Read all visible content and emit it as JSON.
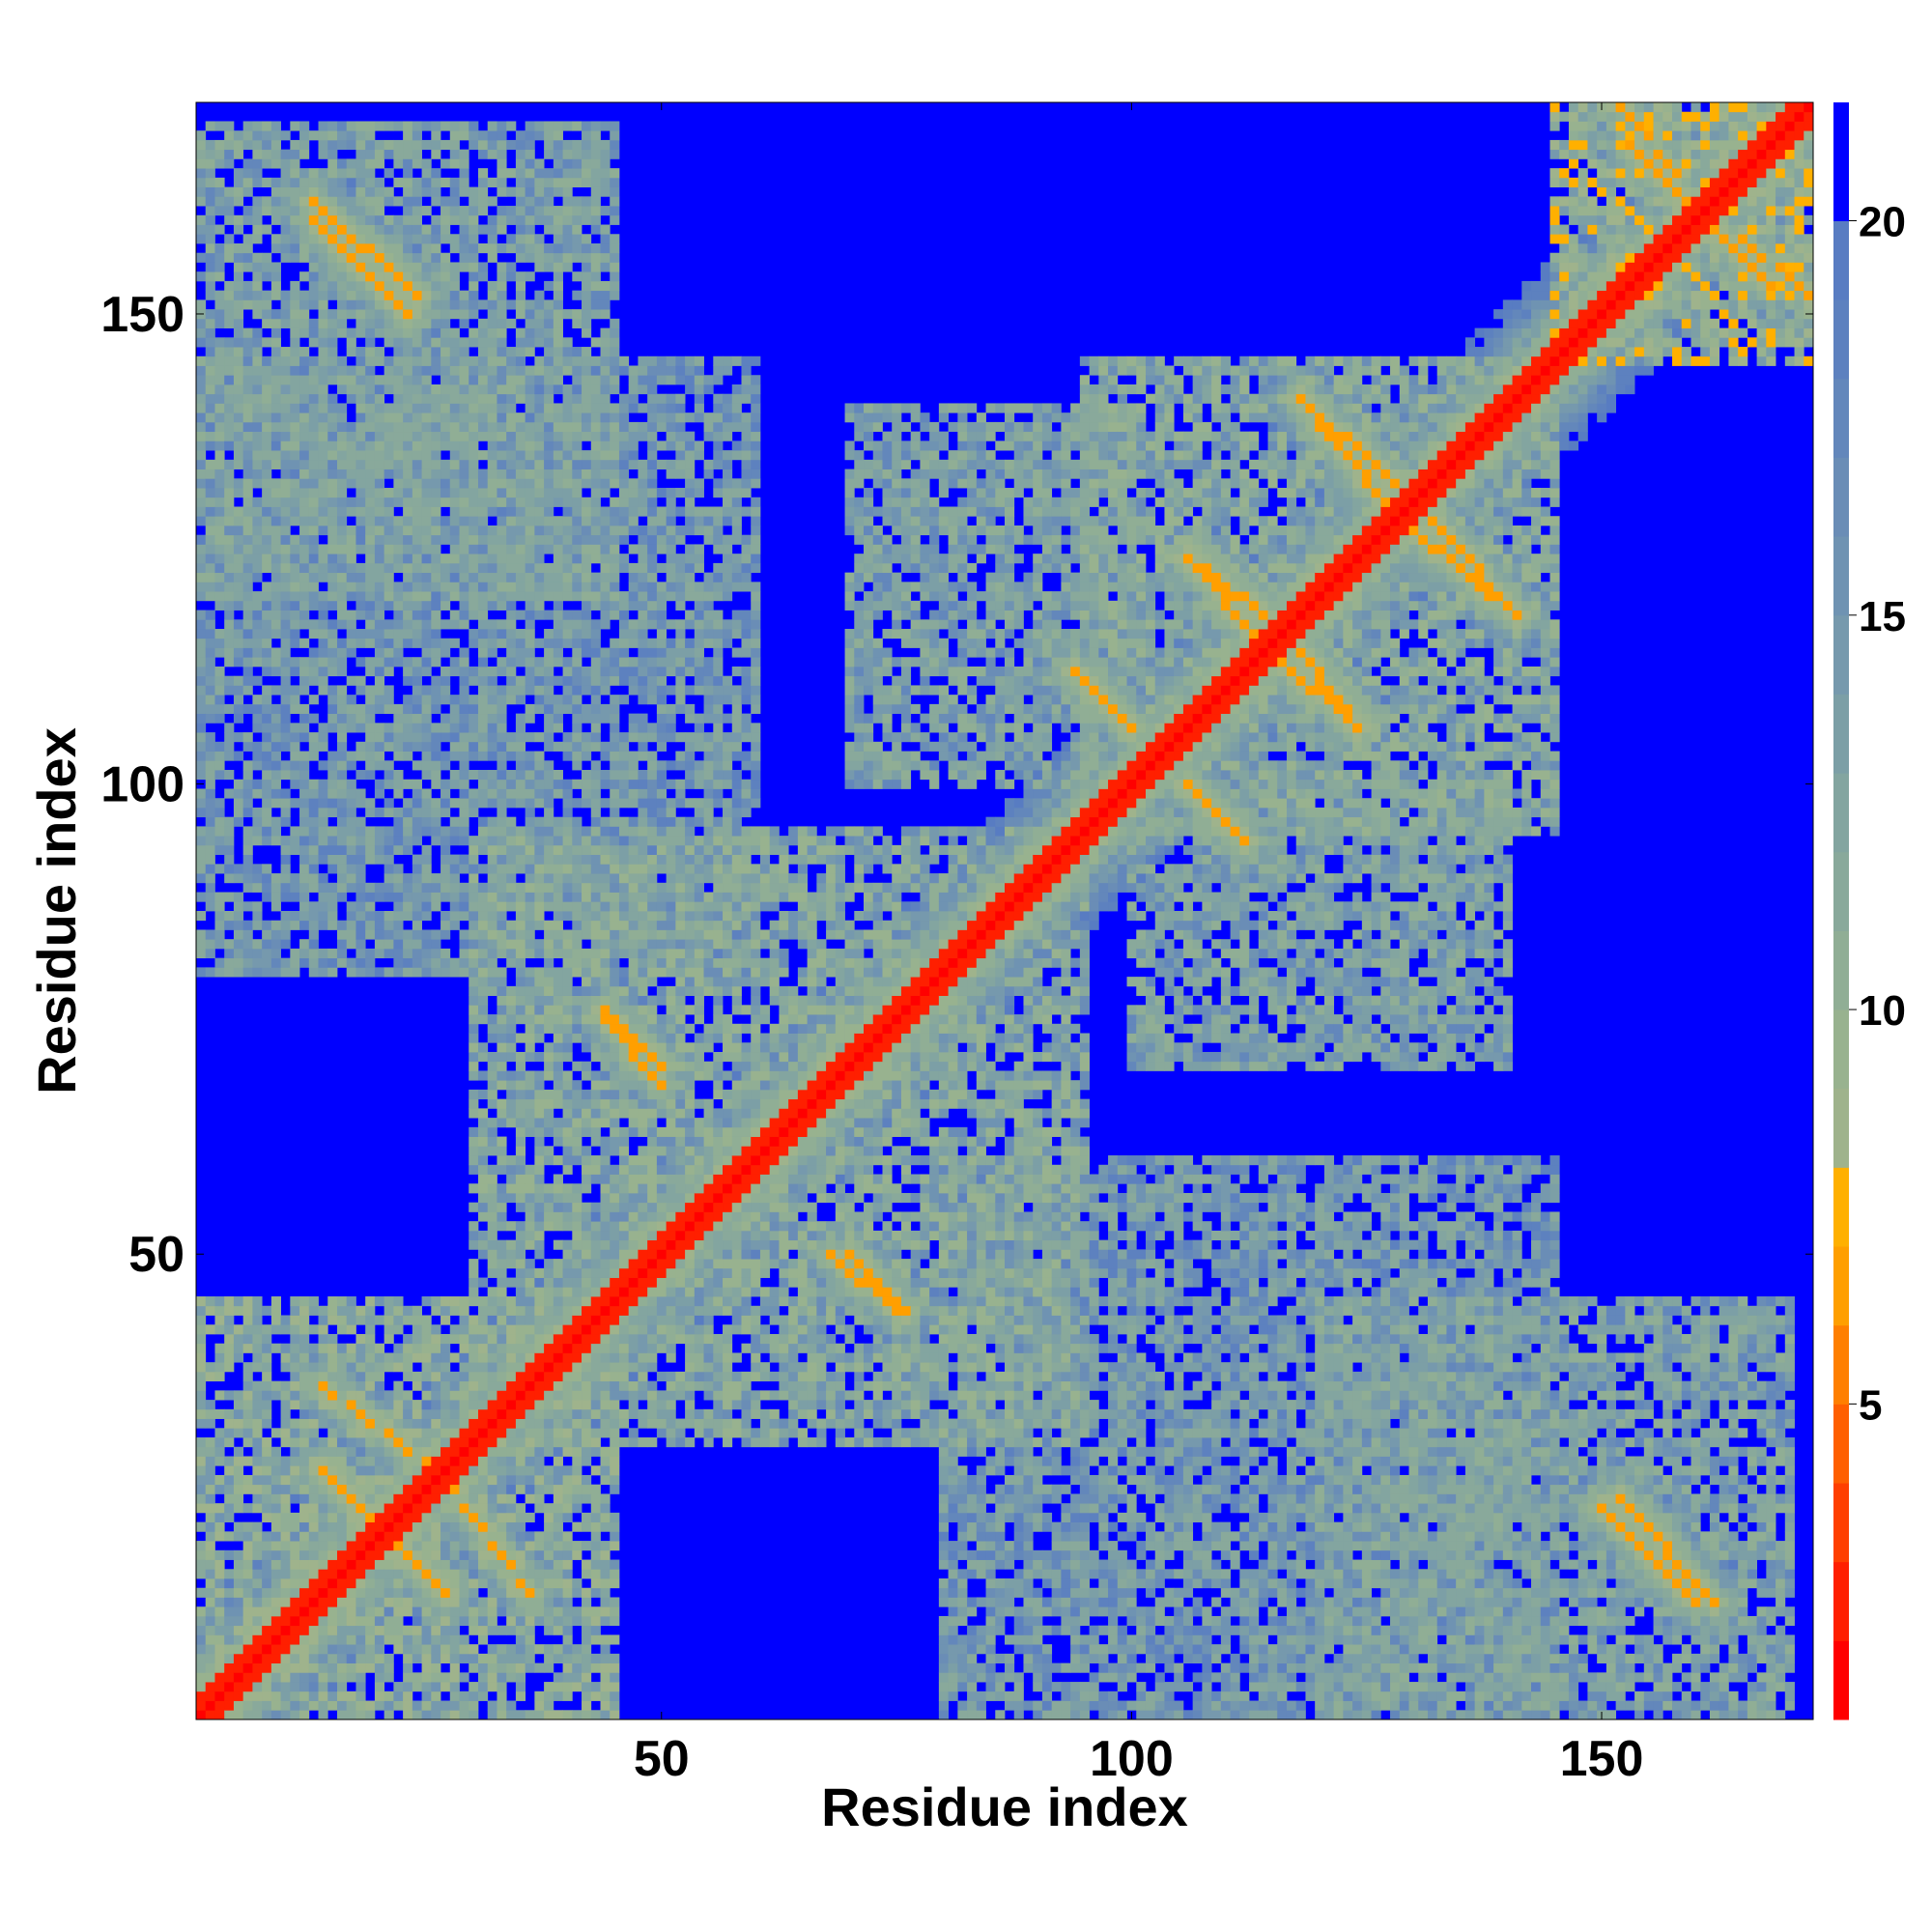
{
  "chart_data": {
    "type": "heatmap",
    "title": "",
    "xlabel": "Residue index",
    "ylabel": "Residue index",
    "n_residues": 172,
    "xlim": [
      1,
      172
    ],
    "ylim": [
      1,
      172
    ],
    "x_ticks": [
      50,
      100,
      150
    ],
    "y_ticks": [
      50,
      100,
      150
    ],
    "colorbar": {
      "ticks": [
        5,
        10,
        15,
        20
      ],
      "range": [
        1,
        21.5
      ],
      "levels": [
        {
          "max": 2,
          "color": "#ff0000"
        },
        {
          "max": 3,
          "color": "#ff1f00"
        },
        {
          "max": 4,
          "color": "#ff3f00"
        },
        {
          "max": 5,
          "color": "#ff5f00"
        },
        {
          "max": 6,
          "color": "#ff7f00"
        },
        {
          "max": 7,
          "color": "#ff9f00"
        },
        {
          "max": 8,
          "color": "#ffb000"
        },
        {
          "max": 9,
          "color": "#9fb38c"
        },
        {
          "max": 10,
          "color": "#98b28f"
        },
        {
          "max": 11,
          "color": "#90ae95"
        },
        {
          "max": 12,
          "color": "#89a99b"
        },
        {
          "max": 13,
          "color": "#83a5a0"
        },
        {
          "max": 14,
          "color": "#7c9fa6"
        },
        {
          "max": 15,
          "color": "#7699ad"
        },
        {
          "max": 16,
          "color": "#6f93b2"
        },
        {
          "max": 17,
          "color": "#6a8db6"
        },
        {
          "max": 18,
          "color": "#6387bb"
        },
        {
          "max": 19,
          "color": "#5d81bf"
        },
        {
          "max": 20,
          "color": "#587cc2"
        },
        {
          "max": 99,
          "color": "#0000ff"
        }
      ]
    },
    "background_value": 21.5,
    "structure": {
      "diagonal": {
        "contact_value": 1.5,
        "sideband_value": 6.5,
        "falloff": 1.3,
        "cutoff": 20
      },
      "antiparallel_strands": [
        {
          "i_start": 14,
          "i_end": 27,
          "j_start": 27,
          "j_end": 14,
          "value": 6.0
        },
        {
          "i_start": 27,
          "i_end": 36,
          "j_start": 26,
          "j_end": 14,
          "value": 6.5
        },
        {
          "i_start": 13,
          "i_end": 24,
          "j_start": 162,
          "j_end": 152,
          "value": 6.0
        },
        {
          "i_start": 150,
          "i_end": 160,
          "j_start": 23,
          "j_end": 13,
          "value": 6.0
        },
        {
          "i_start": 118,
          "i_end": 128,
          "j_start": 141,
          "j_end": 132,
          "value": 6.0
        },
        {
          "i_start": 130,
          "i_end": 141,
          "j_start": 127,
          "j_end": 118,
          "value": 6.0
        },
        {
          "i_start": 108,
          "i_end": 116,
          "j_start": 123,
          "j_end": 116,
          "value": 6.0
        },
        {
          "i_start": 116,
          "i_end": 124,
          "j_start": 113,
          "j_end": 106,
          "value": 6.0
        },
        {
          "i_start": 152,
          "i_end": 158,
          "j_start": 172,
          "j_end": 165,
          "value": 6.5
        },
        {
          "i_start": 161,
          "i_end": 168,
          "j_start": 160,
          "j_end": 153,
          "value": 6.0
        },
        {
          "i_start": 94,
          "i_end": 100,
          "j_start": 112,
          "j_end": 106,
          "value": 6.0
        },
        {
          "i_start": 106,
          "i_end": 112,
          "j_start": 100,
          "j_end": 94,
          "value": 6.0
        },
        {
          "i_start": 44,
          "i_end": 50,
          "j_start": 76,
          "j_end": 70,
          "value": 6.5
        },
        {
          "i_start": 68,
          "i_end": 75,
          "j_start": 50,
          "j_end": 44,
          "value": 6.5
        }
      ],
      "domains": [
        {
          "i": [
            1,
            45
          ],
          "j": [
            1,
            45
          ],
          "value": 11
        },
        {
          "i": [
            30,
            95
          ],
          "j": [
            30,
            95
          ],
          "value": 12
        },
        {
          "i": [
            95,
            145
          ],
          "j": [
            95,
            145
          ],
          "value": 12
        },
        {
          "i": [
            1,
            45
          ],
          "j": [
            120,
            170
          ],
          "value": 13
        },
        {
          "i": [
            120,
            170
          ],
          "j": [
            1,
            45
          ],
          "value": 13
        },
        {
          "i": [
            145,
            172
          ],
          "j": [
            145,
            172
          ],
          "value": 10
        },
        {
          "i": [
            80,
            145
          ],
          "j": [
            1,
            60
          ],
          "value": 14
        },
        {
          "i": [
            1,
            60
          ],
          "j": [
            80,
            145
          ],
          "value": 14
        },
        {
          "i": [
            100,
            140
          ],
          "j": [
            70,
            100
          ],
          "value": 13
        },
        {
          "i": [
            70,
            100
          ],
          "j": [
            100,
            140
          ],
          "value": 13
        }
      ]
    }
  }
}
